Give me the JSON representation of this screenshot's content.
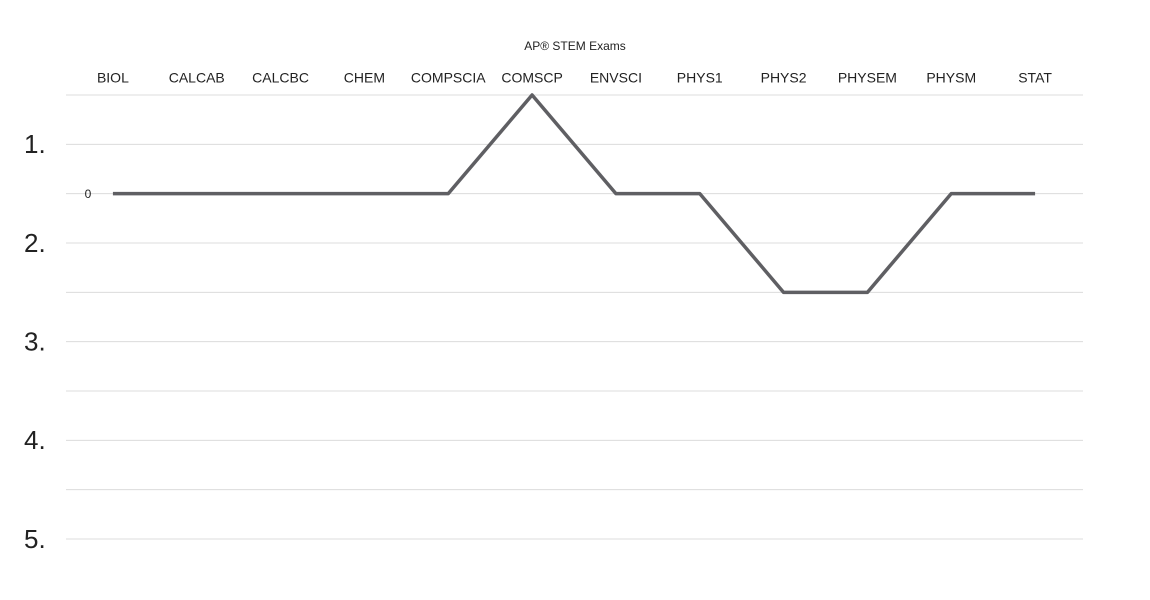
{
  "chart_data": {
    "type": "line",
    "title": "AP® STEM Exams",
    "categories": [
      "BIOL",
      "CALCAB",
      "CALCBC",
      "CHEM",
      "COMPSCIA",
      "COMSCP",
      "ENVSCI",
      "PHYS1",
      "PHYS2",
      "PHYSEM",
      "PHYSM",
      "STAT"
    ],
    "values": [
      1.5,
      1.5,
      1.5,
      1.5,
      1.5,
      0.5,
      1.5,
      1.5,
      2.5,
      2.5,
      1.5,
      1.5
    ],
    "color": "#5f5f63",
    "annotation": "0",
    "ylim": [
      0.5,
      5
    ],
    "y_inverted": true,
    "yticks": [
      {
        "value": 1,
        "label": "1."
      },
      {
        "value": 2,
        "label": "2."
      },
      {
        "value": 3,
        "label": "3."
      },
      {
        "value": 4,
        "label": "4."
      },
      {
        "value": 5,
        "label": "5."
      }
    ],
    "minor_yticks": [
      0.5,
      1.5,
      2.5,
      3.5,
      4.5
    ],
    "grid": true
  }
}
